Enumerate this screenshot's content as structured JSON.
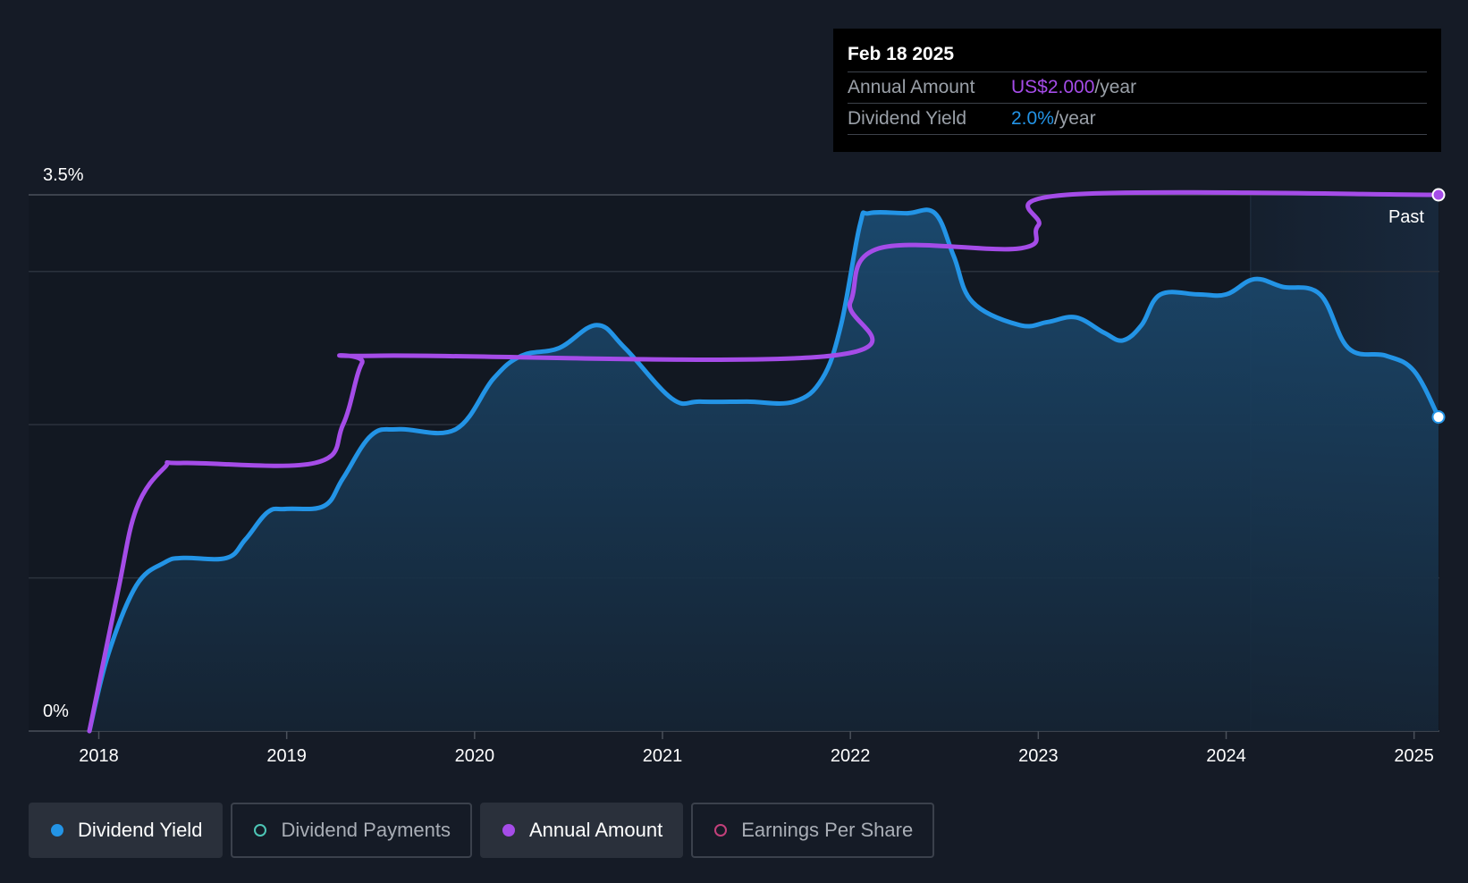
{
  "chart_data": {
    "type": "line",
    "x_range": [
      2017.95,
      2025.13
    ],
    "y_range": [
      0,
      3.5
    ],
    "y_unit": "%",
    "y_ticks_labeled": [
      {
        "value": 0,
        "label": "0%"
      },
      {
        "value": 3.5,
        "label": "3.5%"
      }
    ],
    "gridlines_y": [
      1.0,
      2.0,
      3.0,
      3.5
    ],
    "x_ticks": [
      {
        "value": 2018,
        "label": "2018"
      },
      {
        "value": 2019,
        "label": "2019"
      },
      {
        "value": 2020,
        "label": "2020"
      },
      {
        "value": 2021,
        "label": "2021"
      },
      {
        "value": 2022,
        "label": "2022"
      },
      {
        "value": 2023,
        "label": "2023"
      },
      {
        "value": 2024,
        "label": "2024"
      },
      {
        "value": 2025,
        "label": "2025"
      }
    ],
    "past_region_start": 2024.13,
    "past_label": "Past",
    "series": [
      {
        "name": "Dividend Yield",
        "color": "#2394e6",
        "fill": true,
        "points": [
          [
            2017.95,
            0.0
          ],
          [
            2018.05,
            0.5
          ],
          [
            2018.2,
            0.95
          ],
          [
            2018.35,
            1.1
          ],
          [
            2018.45,
            1.13
          ],
          [
            2018.68,
            1.13
          ],
          [
            2018.78,
            1.25
          ],
          [
            2018.9,
            1.43
          ],
          [
            2019.0,
            1.45
          ],
          [
            2019.2,
            1.47
          ],
          [
            2019.3,
            1.65
          ],
          [
            2019.45,
            1.93
          ],
          [
            2019.6,
            1.97
          ],
          [
            2019.9,
            1.97
          ],
          [
            2020.1,
            2.3
          ],
          [
            2020.25,
            2.45
          ],
          [
            2020.45,
            2.5
          ],
          [
            2020.65,
            2.65
          ],
          [
            2020.8,
            2.5
          ],
          [
            2021.05,
            2.17
          ],
          [
            2021.2,
            2.15
          ],
          [
            2021.45,
            2.15
          ],
          [
            2021.7,
            2.15
          ],
          [
            2021.85,
            2.3
          ],
          [
            2021.95,
            2.65
          ],
          [
            2022.05,
            3.3
          ],
          [
            2022.1,
            3.38
          ],
          [
            2022.3,
            3.38
          ],
          [
            2022.45,
            3.38
          ],
          [
            2022.55,
            3.1
          ],
          [
            2022.65,
            2.8
          ],
          [
            2022.9,
            2.65
          ],
          [
            2023.05,
            2.67
          ],
          [
            2023.2,
            2.7
          ],
          [
            2023.35,
            2.6
          ],
          [
            2023.45,
            2.55
          ],
          [
            2023.55,
            2.65
          ],
          [
            2023.65,
            2.85
          ],
          [
            2023.85,
            2.85
          ],
          [
            2024.0,
            2.85
          ],
          [
            2024.15,
            2.95
          ],
          [
            2024.3,
            2.9
          ],
          [
            2024.5,
            2.85
          ],
          [
            2024.65,
            2.5
          ],
          [
            2024.85,
            2.45
          ],
          [
            2025.0,
            2.35
          ],
          [
            2025.13,
            2.05
          ]
        ]
      },
      {
        "name": "Annual Amount",
        "color": "#a54ce8",
        "fill": false,
        "points": [
          [
            2017.95,
            0.0
          ],
          [
            2018.1,
            0.9
          ],
          [
            2018.2,
            1.45
          ],
          [
            2018.35,
            1.72
          ],
          [
            2018.45,
            1.75
          ],
          [
            2019.15,
            1.75
          ],
          [
            2019.3,
            2.0
          ],
          [
            2019.4,
            2.4
          ],
          [
            2019.5,
            2.45
          ],
          [
            2021.9,
            2.45
          ],
          [
            2022.0,
            2.8
          ],
          [
            2022.15,
            3.15
          ],
          [
            2022.9,
            3.15
          ],
          [
            2023.0,
            3.3
          ],
          [
            2023.15,
            3.5
          ],
          [
            2025.13,
            3.5
          ]
        ]
      }
    ],
    "tooltip": {
      "date": "Feb 18 2025",
      "rows": [
        {
          "label": "Annual Amount",
          "value": "US$2.000",
          "unit": "/year",
          "color": "#a54ce8"
        },
        {
          "label": "Dividend Yield",
          "value": "2.0%",
          "unit": "/year",
          "color": "#2394e6"
        }
      ]
    },
    "legend": [
      {
        "name": "Dividend Yield",
        "active": true,
        "color": "#2394e6"
      },
      {
        "name": "Dividend Payments",
        "active": false,
        "color": "#4dc5b5"
      },
      {
        "name": "Annual Amount",
        "active": true,
        "color": "#a54ce8"
      },
      {
        "name": "Earnings Per Share",
        "active": false,
        "color": "#c2407a"
      }
    ]
  }
}
